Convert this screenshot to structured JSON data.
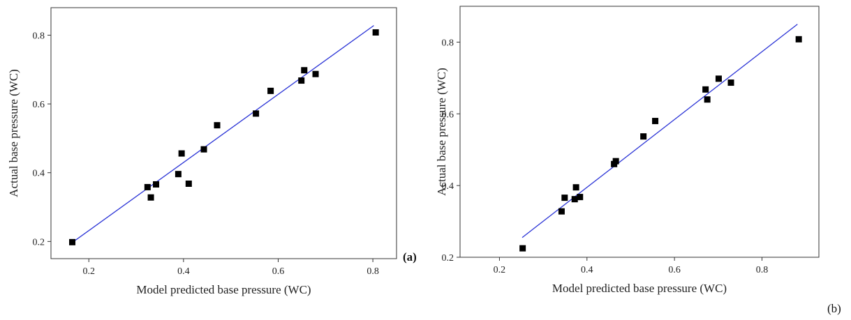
{
  "chart_data": [
    {
      "type": "scatter",
      "panel_label": "(a)",
      "xlabel": "Model predicted base pressure (WC)",
      "ylabel": "Actual base pressure (WC)",
      "xlim": [
        0.12,
        0.85
      ],
      "ylim": [
        0.15,
        0.88
      ],
      "xticks": [
        "0.2",
        "0.4",
        "0.6",
        "0.8"
      ],
      "yticks": [
        "0.2",
        "0.4",
        "0.6",
        "0.8"
      ],
      "grid": false,
      "points": [
        [
          0.165,
          0.198
        ],
        [
          0.324,
          0.358
        ],
        [
          0.331,
          0.328
        ],
        [
          0.342,
          0.366
        ],
        [
          0.389,
          0.396
        ],
        [
          0.396,
          0.456
        ],
        [
          0.411,
          0.368
        ],
        [
          0.443,
          0.468
        ],
        [
          0.471,
          0.538
        ],
        [
          0.553,
          0.572
        ],
        [
          0.584,
          0.638
        ],
        [
          0.649,
          0.668
        ],
        [
          0.655,
          0.698
        ],
        [
          0.679,
          0.687
        ],
        [
          0.806,
          0.808
        ]
      ],
      "fit_line": [
        [
          0.165,
          0.197
        ],
        [
          0.802,
          0.828
        ]
      ],
      "colors": {
        "points": "#000000",
        "line": "#2a33d6"
      }
    },
    {
      "type": "scatter",
      "panel_label": "(b)",
      "xlabel": "Model predicted base pressure (WC)",
      "ylabel": "Actual base pressure (WC)",
      "xlim": [
        0.11,
        0.93
      ],
      "ylim": [
        0.2,
        0.9
      ],
      "xticks": [
        "0.2",
        "0.4",
        "0.6",
        "0.8"
      ],
      "yticks": [
        "0.2",
        "0.4",
        "0.6",
        "0.8"
      ],
      "grid": false,
      "points": [
        [
          0.253,
          0.225
        ],
        [
          0.342,
          0.328
        ],
        [
          0.349,
          0.366
        ],
        [
          0.372,
          0.362
        ],
        [
          0.375,
          0.395
        ],
        [
          0.384,
          0.368
        ],
        [
          0.462,
          0.46
        ],
        [
          0.466,
          0.468
        ],
        [
          0.529,
          0.537
        ],
        [
          0.556,
          0.58
        ],
        [
          0.671,
          0.668
        ],
        [
          0.675,
          0.64
        ],
        [
          0.701,
          0.698
        ],
        [
          0.729,
          0.687
        ],
        [
          0.884,
          0.808
        ]
      ],
      "fit_line": [
        [
          0.252,
          0.255
        ],
        [
          0.881,
          0.85
        ]
      ],
      "colors": {
        "points": "#000000",
        "line": "#2a33d6"
      }
    }
  ]
}
